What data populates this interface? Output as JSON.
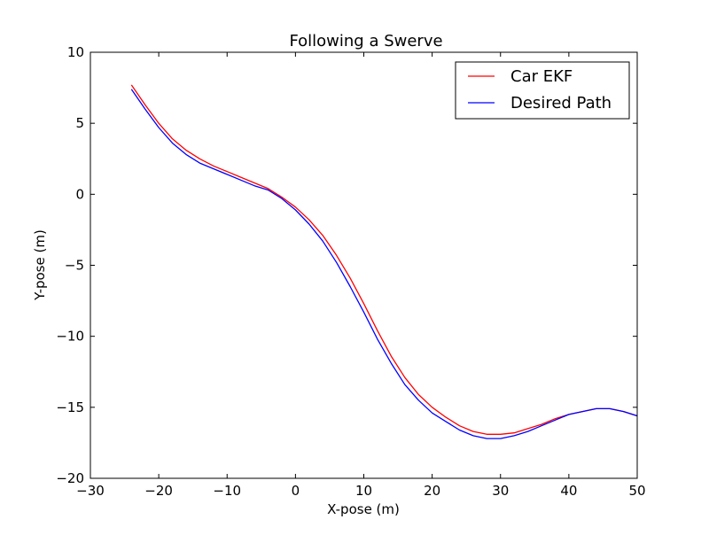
{
  "chart_data": {
    "type": "line",
    "title": "Following a Swerve",
    "xlabel": "X-pose (m)",
    "ylabel": "Y-pose (m)",
    "xlim": [
      -30,
      50
    ],
    "ylim": [
      -20,
      10
    ],
    "xticks": [
      -30,
      -20,
      -10,
      0,
      10,
      20,
      30,
      40,
      50
    ],
    "yticks": [
      -20,
      -15,
      -10,
      -5,
      0,
      5,
      10
    ],
    "xtick_labels": [
      "−30",
      "−20",
      "−10",
      "0",
      "10",
      "20",
      "30",
      "40",
      "50"
    ],
    "ytick_labels": [
      "−20",
      "−15",
      "−10",
      "−5",
      "0",
      "5",
      "10"
    ],
    "grid": false,
    "legend_position": "top-right",
    "series": [
      {
        "name": "Car EKF",
        "color": "#ff0000",
        "points": [
          [
            -24,
            7.7
          ],
          [
            -22,
            6.3
          ],
          [
            -20,
            5.0
          ],
          [
            -18,
            3.9
          ],
          [
            -16,
            3.1
          ],
          [
            -14,
            2.5
          ],
          [
            -12,
            2.0
          ],
          [
            -10,
            1.6
          ],
          [
            -8,
            1.2
          ],
          [
            -6,
            0.8
          ],
          [
            -4,
            0.4
          ],
          [
            -2,
            -0.2
          ],
          [
            0,
            -0.9
          ],
          [
            2,
            -1.8
          ],
          [
            4,
            -2.9
          ],
          [
            6,
            -4.3
          ],
          [
            8,
            -5.9
          ],
          [
            10,
            -7.7
          ],
          [
            12,
            -9.6
          ],
          [
            14,
            -11.4
          ],
          [
            16,
            -12.9
          ],
          [
            18,
            -14.1
          ],
          [
            20,
            -15.0
          ],
          [
            22,
            -15.7
          ],
          [
            24,
            -16.3
          ],
          [
            26,
            -16.7
          ],
          [
            28,
            -16.9
          ],
          [
            30,
            -16.9
          ],
          [
            32,
            -16.8
          ],
          [
            34,
            -16.5
          ],
          [
            36,
            -16.2
          ],
          [
            38,
            -15.8
          ],
          [
            40,
            -15.5
          ],
          [
            42,
            -15.3
          ],
          [
            44,
            -15.1
          ],
          [
            46,
            -15.1
          ],
          [
            48,
            -15.3
          ],
          [
            50,
            -15.6
          ]
        ]
      },
      {
        "name": "Desired Path",
        "color": "#0000ff",
        "points": [
          [
            -24,
            7.4
          ],
          [
            -22,
            6.0
          ],
          [
            -20,
            4.7
          ],
          [
            -18,
            3.6
          ],
          [
            -16,
            2.8
          ],
          [
            -14,
            2.2
          ],
          [
            -12,
            1.8
          ],
          [
            -10,
            1.4
          ],
          [
            -8,
            1.0
          ],
          [
            -6,
            0.6
          ],
          [
            -4,
            0.3
          ],
          [
            -2,
            -0.3
          ],
          [
            0,
            -1.1
          ],
          [
            2,
            -2.1
          ],
          [
            4,
            -3.3
          ],
          [
            6,
            -4.8
          ],
          [
            8,
            -6.5
          ],
          [
            10,
            -8.3
          ],
          [
            12,
            -10.2
          ],
          [
            14,
            -11.9
          ],
          [
            16,
            -13.4
          ],
          [
            18,
            -14.5
          ],
          [
            20,
            -15.4
          ],
          [
            22,
            -16.0
          ],
          [
            24,
            -16.6
          ],
          [
            26,
            -17.0
          ],
          [
            28,
            -17.2
          ],
          [
            30,
            -17.2
          ],
          [
            32,
            -17.0
          ],
          [
            34,
            -16.7
          ],
          [
            36,
            -16.3
          ],
          [
            38,
            -15.9
          ],
          [
            40,
            -15.5
          ],
          [
            42,
            -15.3
          ],
          [
            44,
            -15.1
          ],
          [
            46,
            -15.1
          ],
          [
            48,
            -15.3
          ],
          [
            50,
            -15.6
          ]
        ]
      }
    ]
  }
}
